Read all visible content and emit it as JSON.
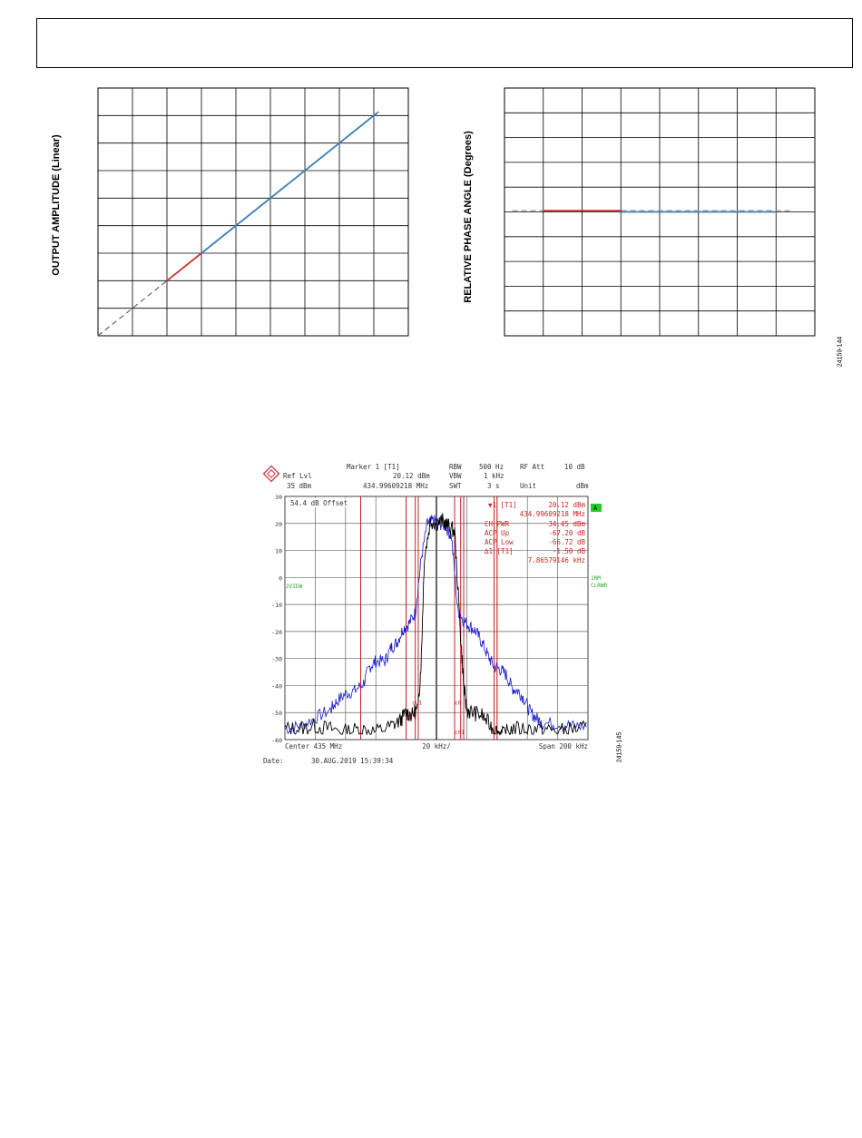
{
  "header": {},
  "figures": {
    "top_fig_id": "24159-144",
    "bottom_fig_id": "24159-145"
  },
  "chart_data": [
    {
      "type": "line",
      "ylabel": "OUTPUT AMPLITUDE (Linear)",
      "xlabel": "",
      "grid": true,
      "xlim": [
        0,
        9
      ],
      "ylim": [
        0,
        9
      ],
      "series": [
        {
          "style": "dashed",
          "color": "#666666",
          "x": [
            0,
            8.2
          ],
          "y": [
            0,
            8.2
          ]
        },
        {
          "color": "#cc3333",
          "x": [
            2,
            3
          ],
          "y": [
            2,
            3
          ]
        },
        {
          "color": "#3a7fb8",
          "x": [
            3,
            8.1
          ],
          "y": [
            3,
            8.1
          ]
        }
      ]
    },
    {
      "type": "line",
      "ylabel": "RELATIVE PHASE ANGLE (Degrees)",
      "xlabel": "",
      "grid": true,
      "xlim": [
        0,
        8
      ],
      "ylim": [
        -5,
        5
      ],
      "series": [
        {
          "style": "dashed",
          "color": "#999999",
          "x": [
            0.2,
            7.4
          ],
          "y": [
            0.05,
            0.05
          ]
        },
        {
          "color": "#cc3333",
          "x": [
            1.0,
            3.0
          ],
          "y": [
            0.05,
            0.05
          ]
        },
        {
          "color": "#3a7fb8",
          "x": [
            3.0,
            7.0
          ],
          "y": [
            0.0,
            0.0
          ]
        }
      ]
    },
    {
      "type": "line",
      "title": "Marker 1 [T1]",
      "instrument": {
        "ref_lvl_label": "Ref Lvl",
        "ref_lvl": "35 dBm",
        "marker_level": "20.12 dBm",
        "marker_freq": "434.99609218 MHz",
        "rbw_label": "RBW",
        "rbw": "500 Hz",
        "rf_att_label": "RF Att",
        "rf_att": "10 dB",
        "vbw_label": "VBW",
        "vbw": "1 kHz",
        "swt_label": "SWT",
        "swt": "3 s",
        "unit_label": "Unit",
        "unit": "dBm",
        "offset": "54.4 dB Offset",
        "marker_box_label": "▼1 [T1]",
        "marker_box_level": "20.12 dBm",
        "marker_box_freq": "434.99609218 MHz",
        "ch_pwr_label": "CH PWR",
        "ch_pwr": "34.45 dBm",
        "acp_up_label": "ACP Up",
        "acp_up": "-67.20 dB",
        "acp_low_label": "ACP Low",
        "acp_low": "-66.72 dB",
        "delta_label": "∆1 [T1]",
        "delta_level": "-1.50 dB",
        "delta_freq": "7.86579146 kHz",
        "a_badge": "A",
        "one_rm": "1RM",
        "clrwr": "CLRWR",
        "view": "2VIEW",
        "center": "Center 435 MHz",
        "div": "20 kHz/",
        "span": "Span 200 kHz",
        "date_label": "Date:",
        "date": "30.AUG.2019  15:39:34",
        "cu1": "cu1",
        "c0": "c0",
        "c01": "c01",
        "cl1": "cl1"
      },
      "ylim": [
        -60,
        30
      ],
      "yticks": [
        30,
        20,
        10,
        0,
        -10,
        -20,
        -30,
        -40,
        -50,
        -60
      ],
      "ytick_labels": [
        "30",
        "20",
        "10",
        "0",
        "-10",
        "-20",
        "-30",
        "-40",
        "-50",
        "-60"
      ],
      "xlim": [
        0,
        10
      ],
      "series": [
        {
          "name": "blue",
          "color": "#1a1acc",
          "x": [
            0,
            0.5,
            1.0,
            1.5,
            1.7,
            2.0,
            2.3,
            2.6,
            2.8,
            3.0,
            3.3,
            3.5,
            3.7,
            3.9,
            4.1,
            4.3,
            4.5,
            4.7,
            4.9,
            5.1,
            5.3,
            5.5,
            5.7,
            5.9,
            6.1,
            6.3,
            6.5,
            6.7,
            6.9,
            7.1,
            7.3,
            7.5,
            7.7,
            7.9,
            8.1,
            8.3,
            8.5,
            9.0,
            9.5,
            10
          ],
          "y": [
            -56,
            -55,
            -52,
            -49,
            -46,
            -43,
            -42,
            -39,
            -33,
            -31,
            -31,
            -26,
            -24,
            -19,
            -17,
            -13,
            7,
            20,
            21,
            20,
            19,
            15,
            -12,
            -16,
            -18,
            -20,
            -24,
            -29,
            -33,
            -34,
            -36,
            -41,
            -42,
            -45,
            -50,
            -52,
            -54,
            -54,
            -55,
            -55
          ]
        },
        {
          "name": "black",
          "color": "#000000",
          "x": [
            0,
            0.5,
            1.0,
            1.5,
            2.0,
            2.5,
            3.0,
            3.5,
            3.8,
            4.0,
            4.2,
            4.4,
            4.5,
            4.6,
            4.8,
            5.0,
            5.2,
            5.4,
            5.6,
            5.8,
            5.9,
            6.0,
            6.2,
            6.5,
            6.8,
            7.0,
            7.2,
            7.5,
            8.0,
            8.5,
            9.0,
            9.5,
            10
          ],
          "y": [
            -56,
            -56,
            -55,
            -56,
            -57,
            -56,
            -57,
            -55,
            -53,
            -50,
            -51,
            -48,
            -30,
            7,
            21,
            20,
            21,
            19,
            17,
            -22,
            -40,
            -49,
            -50,
            -51,
            -55,
            -57,
            -58,
            -56,
            -56,
            -56,
            -57,
            -56,
            -56
          ]
        }
      ],
      "markers_x": [
        2.5,
        4.0,
        4.3,
        4.4,
        5.6,
        5.8,
        5.9,
        6.9,
        7.0
      ]
    }
  ]
}
